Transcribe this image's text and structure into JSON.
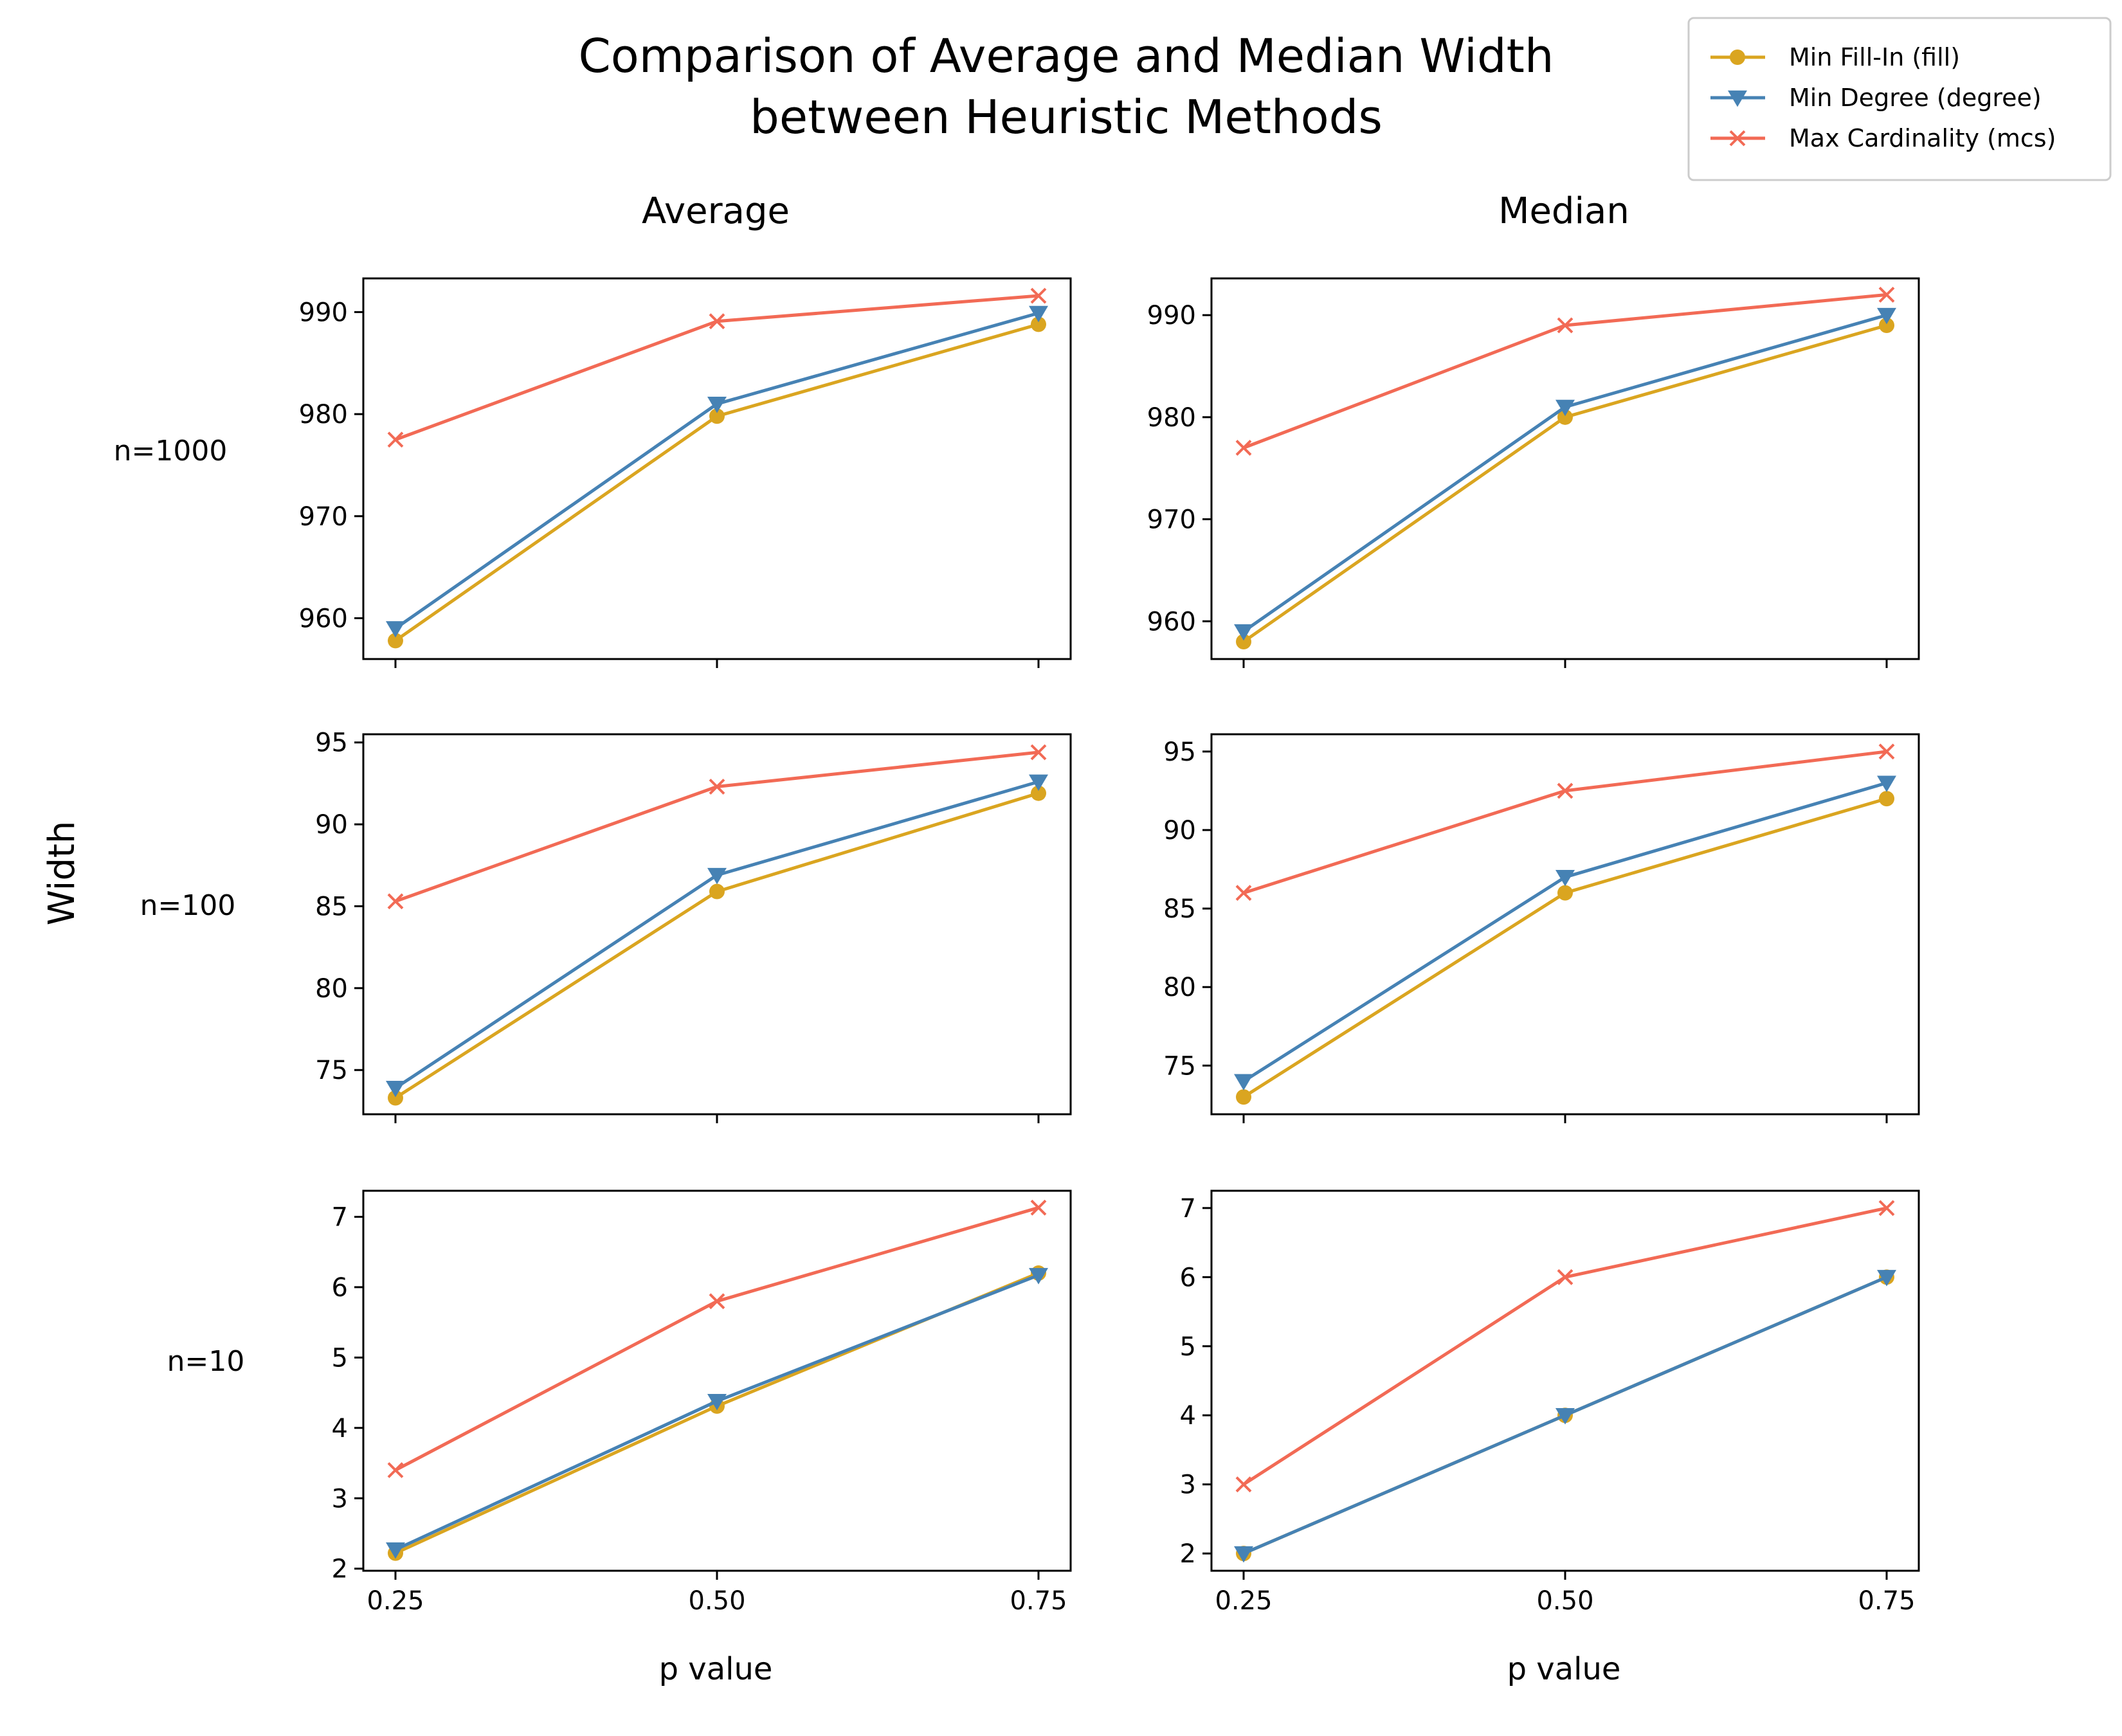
{
  "title": [
    "Comparison of Average and Median Width",
    "between Heuristic Methods"
  ],
  "column_titles": [
    "Average",
    "Median"
  ],
  "row_labels": [
    "n=1000",
    "n=100",
    "n=10"
  ],
  "ylabel": "Width",
  "xlabel": "p value",
  "legend": {
    "placement": "top-right",
    "entries": [
      {
        "label": "Min Fill-In (fill)",
        "color": "#DAA520",
        "marker": "circle"
      },
      {
        "label": "Min Degree (degree)",
        "color": "#4682B4",
        "marker": "triangle-down"
      },
      {
        "label": "Max Cardinality (mcs)",
        "color": "#F26A55",
        "marker": "x"
      }
    ]
  },
  "chart_data": [
    {
      "type": "line",
      "title": "Average",
      "row": "n=1000",
      "x": [
        0.25,
        0.5,
        0.75
      ],
      "xticks": [
        "0.25",
        "0.50",
        "0.75"
      ],
      "ylim": [
        956,
        993.3
      ],
      "yticks": [
        960,
        970,
        980,
        990
      ],
      "series": [
        {
          "name": "Min Fill-In (fill)",
          "values": [
            957.8,
            979.8,
            988.8
          ]
        },
        {
          "name": "Min Degree (degree)",
          "values": [
            959.0,
            981.0,
            989.9
          ]
        },
        {
          "name": "Max Cardinality (mcs)",
          "values": [
            977.5,
            989.1,
            991.6
          ]
        }
      ]
    },
    {
      "type": "line",
      "title": "Median",
      "row": "n=1000",
      "x": [
        0.25,
        0.5,
        0.75
      ],
      "xticks": [
        "0.25",
        "0.50",
        "0.75"
      ],
      "ylim": [
        956.3,
        993.6
      ],
      "yticks": [
        960,
        970,
        980,
        990
      ],
      "series": [
        {
          "name": "Min Fill-In (fill)",
          "values": [
            958,
            980,
            989
          ]
        },
        {
          "name": "Min Degree (degree)",
          "values": [
            959,
            981,
            990
          ]
        },
        {
          "name": "Max Cardinality (mcs)",
          "values": [
            977,
            989,
            992
          ]
        }
      ]
    },
    {
      "type": "line",
      "title": "Average",
      "row": "n=100",
      "x": [
        0.25,
        0.5,
        0.75
      ],
      "xticks": [
        "0.25",
        "0.50",
        "0.75"
      ],
      "ylim": [
        72.3,
        95.5
      ],
      "yticks": [
        75,
        80,
        85,
        90,
        95
      ],
      "series": [
        {
          "name": "Min Fill-In (fill)",
          "values": [
            73.3,
            85.9,
            91.9
          ]
        },
        {
          "name": "Min Degree (degree)",
          "values": [
            73.9,
            86.9,
            92.6
          ]
        },
        {
          "name": "Max Cardinality (mcs)",
          "values": [
            85.3,
            92.3,
            94.4
          ]
        }
      ]
    },
    {
      "type": "line",
      "title": "Median",
      "row": "n=100",
      "x": [
        0.25,
        0.5,
        0.75
      ],
      "xticks": [
        "0.25",
        "0.50",
        "0.75"
      ],
      "ylim": [
        71.9,
        96.1
      ],
      "yticks": [
        75,
        80,
        85,
        90,
        95
      ],
      "series": [
        {
          "name": "Min Fill-In (fill)",
          "values": [
            73,
            86,
            92
          ]
        },
        {
          "name": "Min Degree (degree)",
          "values": [
            74,
            87,
            93
          ]
        },
        {
          "name": "Max Cardinality (mcs)",
          "values": [
            86,
            92.5,
            95
          ]
        }
      ]
    },
    {
      "type": "line",
      "title": "Average",
      "row": "n=10",
      "x": [
        0.25,
        0.5,
        0.75
      ],
      "xticks": [
        "0.25",
        "0.50",
        "0.75"
      ],
      "ylim": [
        1.97,
        7.37
      ],
      "yticks": [
        2,
        3,
        4,
        5,
        6,
        7
      ],
      "series": [
        {
          "name": "Min Fill-In (fill)",
          "values": [
            2.22,
            4.31,
            6.2
          ]
        },
        {
          "name": "Min Degree (degree)",
          "values": [
            2.27,
            4.38,
            6.17
          ]
        },
        {
          "name": "Max Cardinality (mcs)",
          "values": [
            3.4,
            5.8,
            7.13
          ]
        }
      ]
    },
    {
      "type": "line",
      "title": "Median",
      "row": "n=10",
      "x": [
        0.25,
        0.5,
        0.75
      ],
      "xticks": [
        "0.25",
        "0.50",
        "0.75"
      ],
      "ylim": [
        1.75,
        7.25
      ],
      "yticks": [
        2,
        3,
        4,
        5,
        6,
        7
      ],
      "series": [
        {
          "name": "Min Fill-In (fill)",
          "values": [
            2,
            4,
            6
          ]
        },
        {
          "name": "Min Degree (degree)",
          "values": [
            2,
            4,
            6
          ]
        },
        {
          "name": "Max Cardinality (mcs)",
          "values": [
            3,
            6,
            7
          ]
        }
      ]
    }
  ]
}
